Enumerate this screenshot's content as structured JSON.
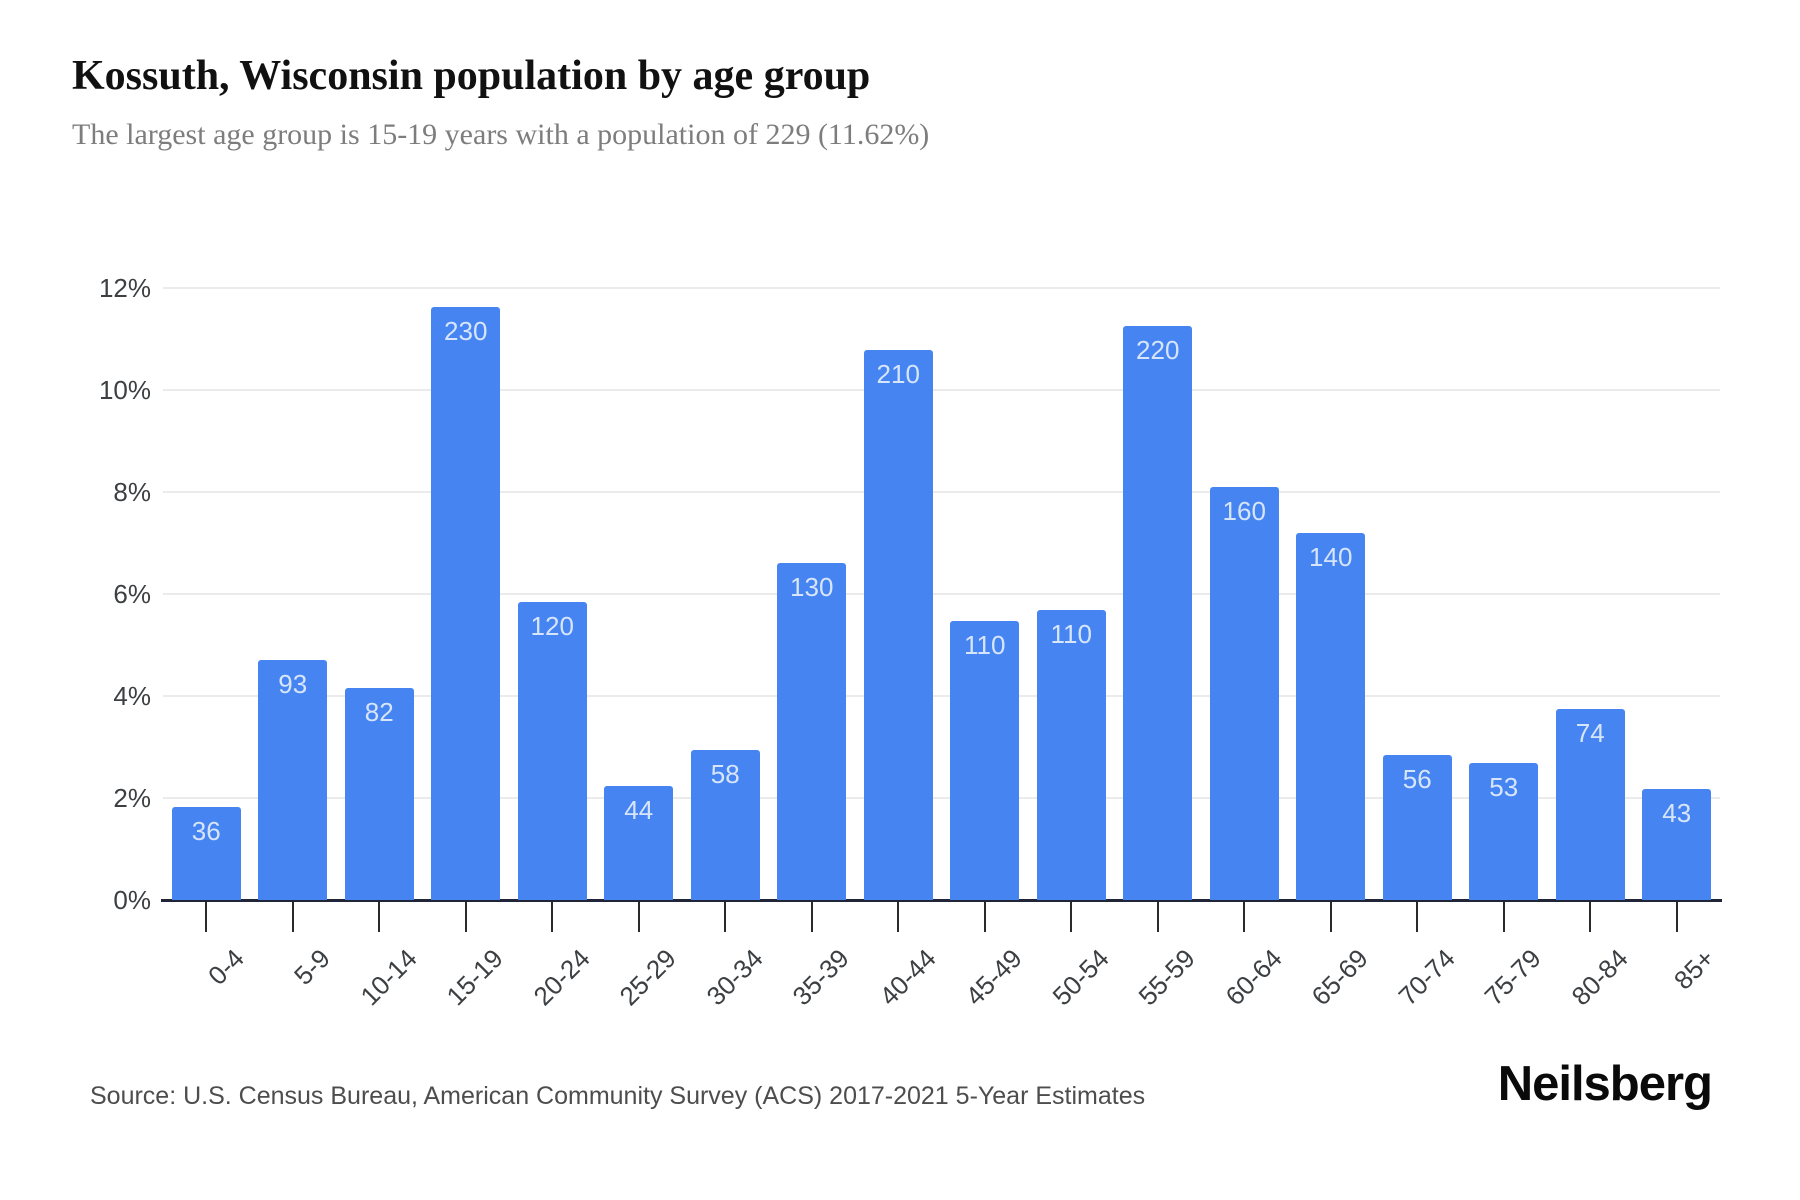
{
  "header": {
    "title": "Kossuth, Wisconsin population by age group",
    "subtitle": "The largest age group is 15-19 years with a population of 229 (11.62%)"
  },
  "footer": {
    "source": "Source: U.S. Census Bureau, American Community Survey (ACS) 2017-2021 5-Year Estimates",
    "logo": "Neilsberg"
  },
  "colors": {
    "background": "#ffffff",
    "bar": "#4685f1",
    "bar_label": "#d7e5fb",
    "gridline": "#ebebeb",
    "axis_line": "#202638",
    "tick": "#2a2a2a",
    "axis_text": "#3d4043",
    "title_text": "#111111",
    "subtitle_text": "#7d7d7d",
    "source_text": "#4d4d4d"
  },
  "chart_data": {
    "type": "bar",
    "title": "Kossuth, Wisconsin population by age group",
    "subtitle": "The largest age group is 15-19 years with a population of 229 (11.62%)",
    "xlabel": "",
    "ylabel": "",
    "categories": [
      "0-4",
      "5-9",
      "10-14",
      "15-19",
      "20-24",
      "25-29",
      "30-34",
      "35-39",
      "40-44",
      "45-49",
      "50-54",
      "55-59",
      "60-64",
      "65-69",
      "70-74",
      "75-79",
      "80-84",
      "85+"
    ],
    "values": [
      36,
      93,
      82,
      230,
      120,
      44,
      58,
      130,
      210,
      110,
      110,
      220,
      160,
      140,
      56,
      53,
      74,
      43
    ],
    "percents": [
      1.83,
      4.71,
      4.16,
      11.62,
      5.85,
      2.23,
      2.94,
      6.6,
      10.78,
      5.47,
      5.69,
      11.25,
      8.1,
      7.2,
      2.84,
      2.69,
      3.75,
      2.18
    ],
    "y_ticks_percent": [
      0,
      2,
      4,
      6,
      8,
      10,
      12
    ],
    "y_tick_labels": [
      "0%",
      "2%",
      "4%",
      "6%",
      "8%",
      "10%",
      "12%"
    ],
    "ylim": [
      0,
      12
    ],
    "grid": true,
    "legend": false
  }
}
